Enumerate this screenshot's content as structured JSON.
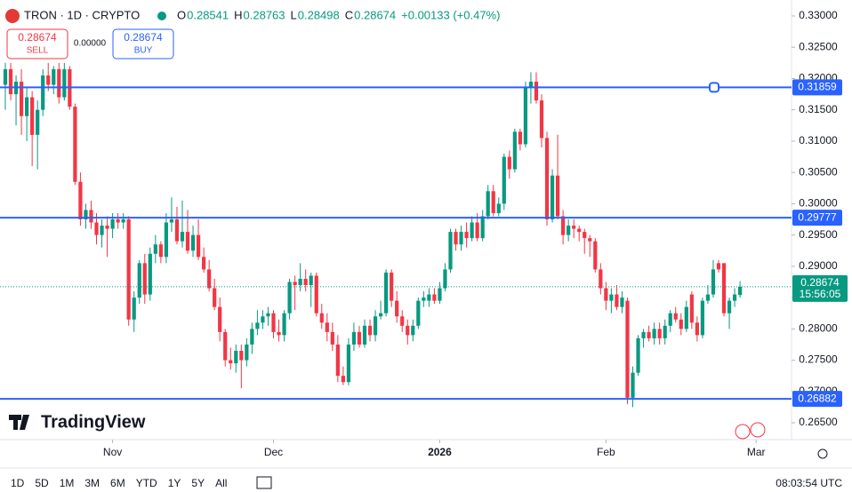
{
  "header": {
    "symbol": "TRON · 1D · CRYPTO",
    "o": "O",
    "h": "H",
    "l": "L",
    "c": "C",
    "change": "+0.00133 (+0.47%)",
    "sell": "SELL",
    "buy": "BUY",
    "spread": "0.00000"
  },
  "brand": "TradingView",
  "toolbar": {
    "ranges": [
      "1D",
      "5D",
      "1M",
      "3M",
      "6M",
      "YTD",
      "1Y",
      "5Y",
      "All"
    ],
    "clock": "08:03:54 UTC"
  },
  "chart_data": {
    "type": "candlestick",
    "up_color": "#089981",
    "down_color": "#f23645",
    "line_color": "#2962ff",
    "x": [
      0,
      1,
      2,
      3,
      4,
      5,
      6,
      7,
      8,
      9,
      10,
      11,
      12,
      13,
      14,
      15,
      16,
      17,
      18,
      19,
      20,
      21,
      22,
      23,
      24,
      25,
      26,
      27,
      28,
      29,
      30,
      31,
      32,
      33,
      34,
      35,
      36,
      37,
      38,
      39,
      40,
      41,
      42,
      43,
      44,
      45,
      46,
      47,
      48,
      49,
      50,
      51,
      52,
      53,
      54,
      55,
      56,
      57,
      58,
      59,
      60,
      61,
      62,
      63,
      64,
      65,
      66,
      67,
      68,
      69,
      70,
      71,
      72,
      73,
      74,
      75,
      76,
      77,
      78,
      79,
      80,
      81,
      82,
      83,
      84,
      85,
      86,
      87,
      88,
      89,
      90,
      91,
      92,
      93,
      94,
      95,
      96,
      97,
      98,
      99,
      100,
      101,
      102,
      103,
      104,
      105,
      106,
      107,
      108,
      109,
      110,
      111,
      112,
      113,
      114,
      115,
      116,
      117,
      118,
      119,
      120,
      121,
      122,
      123,
      124,
      125,
      126,
      127,
      128,
      129,
      130,
      131,
      132,
      133,
      134,
      135,
      136,
      137
    ],
    "open": [
      0.319,
      0.3215,
      0.3175,
      0.3195,
      0.314,
      0.317,
      0.311,
      0.315,
      0.3205,
      0.319,
      0.3215,
      0.317,
      0.3215,
      0.3155,
      0.3035,
      0.2975,
      0.299,
      0.297,
      0.295,
      0.2965,
      0.296,
      0.2975,
      0.297,
      0.2975,
      0.2815,
      0.285,
      0.2905,
      0.2855,
      0.292,
      0.2935,
      0.2915,
      0.297,
      0.2975,
      0.294,
      0.2955,
      0.2925,
      0.295,
      0.2915,
      0.2895,
      0.2865,
      0.2835,
      0.2795,
      0.275,
      0.2745,
      0.2765,
      0.275,
      0.2775,
      0.28,
      0.281,
      0.282,
      0.2825,
      0.2795,
      0.279,
      0.2825,
      0.2875,
      0.287,
      0.288,
      0.287,
      0.2885,
      0.2825,
      0.281,
      0.2795,
      0.2775,
      0.2725,
      0.2715,
      0.2775,
      0.2795,
      0.2775,
      0.2805,
      0.279,
      0.282,
      0.2825,
      0.289,
      0.2845,
      0.282,
      0.2805,
      0.279,
      0.2805,
      0.2845,
      0.2845,
      0.2855,
      0.2845,
      0.2865,
      0.2895,
      0.2955,
      0.2935,
      0.2955,
      0.2945,
      0.297,
      0.2945,
      0.298,
      0.302,
      0.2985,
      0.3,
      0.3075,
      0.3055,
      0.3115,
      0.3095,
      0.3185,
      0.3195,
      0.3165,
      0.3105,
      0.2975,
      0.3045,
      0.298,
      0.295,
      0.2965,
      0.296,
      0.2955,
      0.2945,
      0.294,
      0.2895,
      0.2865,
      0.2845,
      0.2855,
      0.2835,
      0.2845,
      0.269,
      0.273,
      0.2785,
      0.2795,
      0.2785,
      0.28,
      0.2785,
      0.2805,
      0.2825,
      0.2815,
      0.28,
      0.2855,
      0.281,
      0.279,
      0.2845,
      0.2855,
      0.2905,
      0.2905,
      0.2825,
      0.2845,
      0.28541
    ],
    "high": [
      0.3225,
      0.3225,
      0.3205,
      0.3215,
      0.3185,
      0.318,
      0.3165,
      0.3215,
      0.3225,
      0.322,
      0.3225,
      0.3225,
      0.322,
      0.316,
      0.305,
      0.3,
      0.3005,
      0.2985,
      0.2975,
      0.298,
      0.2985,
      0.2985,
      0.2985,
      0.298,
      0.286,
      0.291,
      0.292,
      0.293,
      0.295,
      0.294,
      0.2985,
      0.301,
      0.2995,
      0.3005,
      0.299,
      0.2965,
      0.2975,
      0.293,
      0.291,
      0.288,
      0.285,
      0.28,
      0.277,
      0.2775,
      0.2775,
      0.2785,
      0.281,
      0.283,
      0.283,
      0.2835,
      0.283,
      0.2815,
      0.283,
      0.288,
      0.2885,
      0.2905,
      0.2895,
      0.289,
      0.289,
      0.284,
      0.2825,
      0.281,
      0.279,
      0.274,
      0.2785,
      0.281,
      0.2805,
      0.2815,
      0.2815,
      0.283,
      0.2845,
      0.2895,
      0.2895,
      0.286,
      0.283,
      0.2815,
      0.2815,
      0.285,
      0.286,
      0.2865,
      0.2865,
      0.2875,
      0.2905,
      0.296,
      0.296,
      0.2965,
      0.297,
      0.298,
      0.2985,
      0.299,
      0.303,
      0.303,
      0.301,
      0.308,
      0.3085,
      0.312,
      0.312,
      0.3195,
      0.321,
      0.321,
      0.3175,
      0.3115,
      0.3055,
      0.311,
      0.299,
      0.2975,
      0.2975,
      0.2965,
      0.296,
      0.295,
      0.2945,
      0.2905,
      0.2875,
      0.2865,
      0.287,
      0.286,
      0.285,
      0.274,
      0.279,
      0.28,
      0.2805,
      0.281,
      0.281,
      0.2815,
      0.283,
      0.2835,
      0.2825,
      0.2845,
      0.286,
      0.282,
      0.285,
      0.287,
      0.291,
      0.291,
      0.2905,
      0.285,
      0.2865,
      0.28763
    ],
    "low": [
      0.315,
      0.3165,
      0.3125,
      0.311,
      0.31,
      0.306,
      0.3055,
      0.314,
      0.318,
      0.3175,
      0.316,
      0.3165,
      0.315,
      0.303,
      0.2965,
      0.296,
      0.296,
      0.2935,
      0.293,
      0.2915,
      0.2945,
      0.296,
      0.296,
      0.2805,
      0.2795,
      0.284,
      0.284,
      0.2845,
      0.2905,
      0.2905,
      0.2905,
      0.2955,
      0.2935,
      0.293,
      0.292,
      0.2915,
      0.291,
      0.289,
      0.286,
      0.283,
      0.278,
      0.274,
      0.2735,
      0.273,
      0.2705,
      0.274,
      0.276,
      0.279,
      0.28,
      0.2805,
      0.2785,
      0.278,
      0.278,
      0.2815,
      0.283,
      0.286,
      0.286,
      0.2835,
      0.282,
      0.28,
      0.278,
      0.2765,
      0.2715,
      0.271,
      0.271,
      0.2765,
      0.277,
      0.277,
      0.278,
      0.278,
      0.2815,
      0.282,
      0.2835,
      0.281,
      0.2795,
      0.2775,
      0.278,
      0.28,
      0.2835,
      0.2835,
      0.284,
      0.284,
      0.286,
      0.289,
      0.2925,
      0.2925,
      0.293,
      0.294,
      0.294,
      0.294,
      0.2975,
      0.298,
      0.298,
      0.299,
      0.304,
      0.305,
      0.3085,
      0.309,
      0.316,
      0.316,
      0.309,
      0.2965,
      0.297,
      0.2975,
      0.2935,
      0.294,
      0.2945,
      0.294,
      0.292,
      0.2915,
      0.289,
      0.2855,
      0.283,
      0.2825,
      0.283,
      0.2825,
      0.268,
      0.2675,
      0.2725,
      0.277,
      0.278,
      0.2775,
      0.2775,
      0.2775,
      0.2795,
      0.281,
      0.279,
      0.2795,
      0.28,
      0.278,
      0.2785,
      0.284,
      0.285,
      0.289,
      0.282,
      0.28,
      0.2835,
      0.28498
    ],
    "close": [
      0.3215,
      0.3175,
      0.3195,
      0.314,
      0.317,
      0.311,
      0.315,
      0.3205,
      0.319,
      0.3215,
      0.317,
      0.3215,
      0.3155,
      0.3035,
      0.2975,
      0.299,
      0.297,
      0.295,
      0.2965,
      0.296,
      0.2975,
      0.297,
      0.2975,
      0.2815,
      0.285,
      0.2905,
      0.2855,
      0.292,
      0.2935,
      0.2915,
      0.297,
      0.2975,
      0.294,
      0.2955,
      0.2925,
      0.295,
      0.2915,
      0.2895,
      0.2865,
      0.2835,
      0.2795,
      0.275,
      0.2745,
      0.2765,
      0.275,
      0.2775,
      0.28,
      0.281,
      0.282,
      0.2825,
      0.2795,
      0.279,
      0.2825,
      0.2875,
      0.287,
      0.288,
      0.287,
      0.2885,
      0.2825,
      0.281,
      0.2795,
      0.2775,
      0.2725,
      0.2715,
      0.2775,
      0.2795,
      0.2775,
      0.2805,
      0.279,
      0.282,
      0.2825,
      0.289,
      0.2845,
      0.282,
      0.2805,
      0.279,
      0.2805,
      0.2845,
      0.285,
      0.2855,
      0.2845,
      0.2865,
      0.2895,
      0.2955,
      0.2935,
      0.2955,
      0.2945,
      0.297,
      0.2945,
      0.298,
      0.302,
      0.2985,
      0.3,
      0.3075,
      0.3055,
      0.3115,
      0.3095,
      0.3185,
      0.3195,
      0.3165,
      0.3105,
      0.2975,
      0.3045,
      0.298,
      0.295,
      0.2965,
      0.296,
      0.2955,
      0.2945,
      0.294,
      0.2895,
      0.2865,
      0.2845,
      0.2855,
      0.2835,
      0.285,
      0.269,
      0.273,
      0.2785,
      0.2795,
      0.2785,
      0.28,
      0.2785,
      0.2805,
      0.2825,
      0.2815,
      0.28,
      0.2835,
      0.281,
      0.279,
      0.2845,
      0.2855,
      0.2895,
      0.2895,
      0.2825,
      0.2845,
      0.2855,
      0.28674
    ],
    "countdown": "15:56:05",
    "hlines": [
      0.31859,
      0.29777,
      0.26882
    ],
    "xlim": [
      -0.995,
      146.6
    ],
    "xticks": [
      {
        "value": 20,
        "label": "Nov"
      },
      {
        "value": 50,
        "label": "Dec"
      },
      {
        "value": 81,
        "label": "2026"
      },
      {
        "value": 112,
        "label": "Feb"
      },
      {
        "value": 140,
        "label": "Mar"
      }
    ],
    "ylim": [
      0.26231,
      0.33255
    ],
    "yticks": [
      {
        "value": 0.265,
        "label": "0.26500"
      },
      {
        "value": 0.27,
        "label": "0.27000"
      },
      {
        "value": 0.275,
        "label": "0.27500"
      },
      {
        "value": 0.28,
        "label": "0.28000"
      },
      {
        "value": 0.285,
        "label": "0.28500"
      },
      {
        "value": 0.29,
        "label": "0.29000"
      },
      {
        "value": 0.295,
        "label": "0.29500"
      },
      {
        "value": 0.3,
        "label": "0.30000"
      },
      {
        "value": 0.305,
        "label": "0.30500"
      },
      {
        "value": 0.31,
        "label": "0.31000"
      },
      {
        "value": 0.315,
        "label": "0.31500"
      },
      {
        "value": 0.32,
        "label": "0.32000"
      },
      {
        "value": 0.325,
        "label": "0.32500"
      },
      {
        "value": 0.33,
        "label": "0.33000"
      }
    ]
  }
}
